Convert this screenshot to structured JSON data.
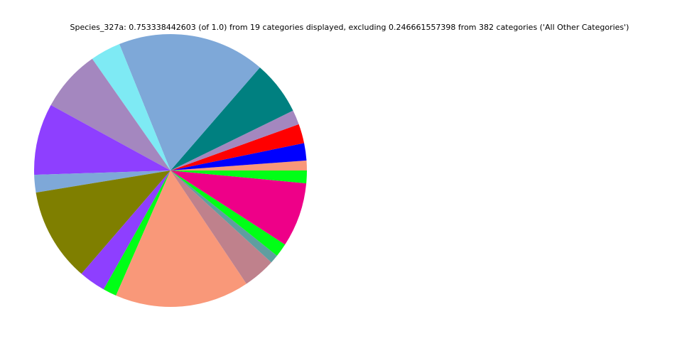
{
  "chart_data": {
    "type": "pie",
    "title": "Species_327a: 0.753338442603 (of 1.0) from 19 categories displayed, excluding 0.246661557398 from 382 categories ('All Other Categories')",
    "values": [
      0.0088,
      0.0155,
      0.0172,
      0.013,
      0.0481,
      0.1318,
      0.0272,
      0.055,
      0.0638,
      0.0157,
      0.0835,
      0.0239,
      0.0121,
      0.1201,
      0.0289,
      0.0077,
      0.0121,
      0.0575,
      0.0113
    ],
    "colors": [
      "#f99879",
      "#0000ff",
      "#ff0000",
      "#a487bf",
      "#008080",
      "#7ea8d8",
      "#7eeaf4",
      "#a487bf",
      "#8e3fff",
      "#7ea8d8",
      "#7f7f00",
      "#8e3fff",
      "#00ff16",
      "#f99879",
      "#bf818c",
      "#5f9ea0",
      "#00ff16",
      "#ee0088",
      "#00ff16"
    ]
  }
}
